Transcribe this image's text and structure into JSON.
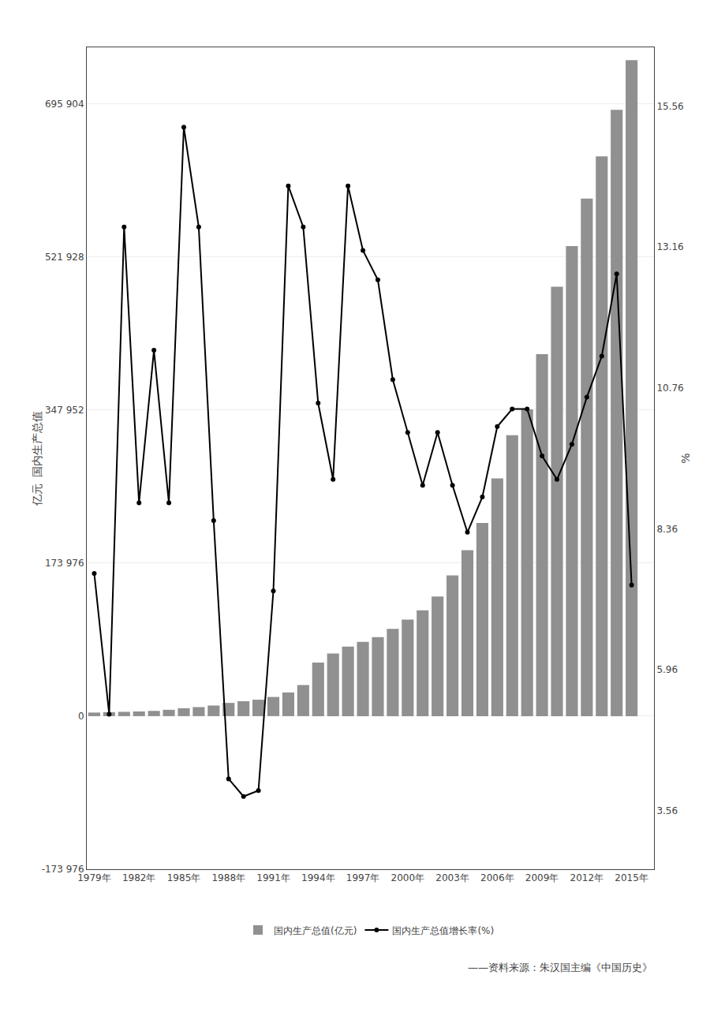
{
  "chart_data": {
    "type": "bar",
    "ylabel": "亿元  国内生产总值",
    "y2label": "%",
    "x": [
      1979,
      1980,
      1981,
      1982,
      1983,
      1984,
      1985,
      1986,
      1987,
      1988,
      1989,
      1990,
      1991,
      1992,
      1993,
      1994,
      1995,
      1996,
      1997,
      1998,
      1999,
      2000,
      2001,
      2002,
      2003,
      2004,
      2005,
      2006,
      2007,
      2008,
      2009,
      2010,
      2011,
      2012,
      2013,
      2014,
      2015
    ],
    "series": [
      {
        "name": "国内生产总值(亿元)",
        "type": "bar",
        "color": "#909090",
        "values": [
          4062,
          4546,
          4892,
          5323,
          5963,
          7208,
          9016,
          10275,
          12059,
          15043,
          17000,
          18668,
          21782,
          26923,
          35334,
          60794,
          71177,
          78973,
          84402,
          89677,
          99215,
          109655,
          120333,
          135823,
          159878,
          188493,
          219439,
          270092,
          319245,
          348498,
          411265,
          487940,
          534123,
          588019,
          636139,
          688858,
          745450
        ]
      },
      {
        "name": "国内生产总值增长率(%)",
        "type": "line",
        "color": "#000000",
        "marker": "circle",
        "axis": "y2",
        "values": [
          7.6,
          5.2,
          13.5,
          8.8,
          11.4,
          8.8,
          15.2,
          13.5,
          8.5,
          4.1,
          3.8,
          3.9,
          7.3,
          14.2,
          13.5,
          10.5,
          9.2,
          14.2,
          13.1,
          12.6,
          10.9,
          10.0,
          9.1,
          10.0,
          9.1,
          8.3,
          8.9,
          10.1,
          10.4,
          10.4,
          9.6,
          9.2,
          9.8,
          10.6,
          11.3,
          12.7,
          7.4
        ]
      }
    ],
    "xlim": [
      1978.5,
      2016.5
    ],
    "xticks": [
      {
        "value": 1979,
        "label": "1979年"
      },
      {
        "value": 1982,
        "label": "1982年"
      },
      {
        "value": 1985,
        "label": "1985年"
      },
      {
        "value": 1988,
        "label": "1988年"
      },
      {
        "value": 1991,
        "label": "1991年"
      },
      {
        "value": 1994,
        "label": "1994年"
      },
      {
        "value": 1997,
        "label": "1997年"
      },
      {
        "value": 2000,
        "label": "2000年"
      },
      {
        "value": 2003,
        "label": "2003年"
      },
      {
        "value": 2006,
        "label": "2006年"
      },
      {
        "value": 2009,
        "label": "2009年"
      },
      {
        "value": 2012,
        "label": "2012年"
      },
      {
        "value": 2015,
        "label": "2015年"
      }
    ],
    "ylim": [
      -173976,
      760000
    ],
    "yticks": [
      {
        "value": -173976,
        "label": "-173 976"
      },
      0,
      {
        "value": 173976,
        "label": "173 976"
      },
      {
        "value": 347952,
        "label": "347 952"
      },
      {
        "value": 521928,
        "label": "521 928"
      },
      {
        "value": 695904,
        "label": "695 904"
      }
    ],
    "y2lim": [
      2.56,
      16.56
    ],
    "y2ticks": [
      3.56,
      5.96,
      8.36,
      10.76,
      13.16,
      15.56
    ],
    "grid": true,
    "legend": "bottom",
    "annotations": [
      {
        "text": "——资料来源：朱汉国主编《中国历史》"
      }
    ]
  }
}
